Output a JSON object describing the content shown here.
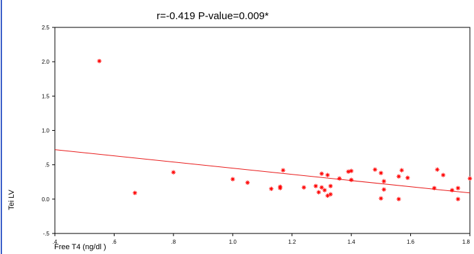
{
  "chart_data": {
    "type": "scatter",
    "title": "r=-0.419   P-value=0.009*",
    "xlabel": "Free T4 (ng/dl )",
    "ylabel": "Tei LV",
    "xlim": [
      0.4,
      1.8
    ],
    "ylim": [
      -0.5,
      2.5
    ],
    "x_ticks": [
      ".4",
      ".6",
      ".8",
      "1.0",
      "1.2",
      "1.4",
      "1.6",
      "1.8"
    ],
    "y_ticks": [
      "2.5",
      "2.0",
      "1.5",
      "1.0",
      ".5",
      "0.0",
      "-.5"
    ],
    "grid": false,
    "colors": {
      "marker": "#ff0000",
      "frame": "#000000",
      "left_border": "#3a5ec8"
    },
    "series": [
      {
        "x": [
          0.55,
          0.67,
          0.8,
          1.0,
          1.05,
          1.13,
          1.16,
          1.16,
          1.17,
          1.24,
          1.28,
          1.29,
          1.3,
          1.3,
          1.31,
          1.32,
          1.32,
          1.33,
          1.33,
          1.36,
          1.39,
          1.4,
          1.4,
          1.48,
          1.5,
          1.5,
          1.51,
          1.51,
          1.56,
          1.56,
          1.57,
          1.59,
          1.68,
          1.69,
          1.71,
          1.74,
          1.76,
          1.76,
          1.8
        ],
        "y": [
          2.01,
          0.09,
          0.39,
          0.29,
          0.24,
          0.15,
          0.16,
          0.18,
          0.42,
          0.17,
          0.19,
          0.1,
          0.37,
          0.17,
          0.13,
          0.35,
          0.05,
          0.07,
          0.19,
          0.3,
          0.4,
          0.41,
          0.28,
          0.43,
          0.38,
          0.01,
          0.26,
          0.14,
          0.33,
          0.0,
          0.42,
          0.31,
          0.16,
          0.43,
          0.35,
          0.13,
          0.0,
          0.16,
          0.3
        ]
      }
    ],
    "fit_line": {
      "x": [
        0.4,
        1.8
      ],
      "y": [
        0.72,
        0.09
      ]
    }
  }
}
